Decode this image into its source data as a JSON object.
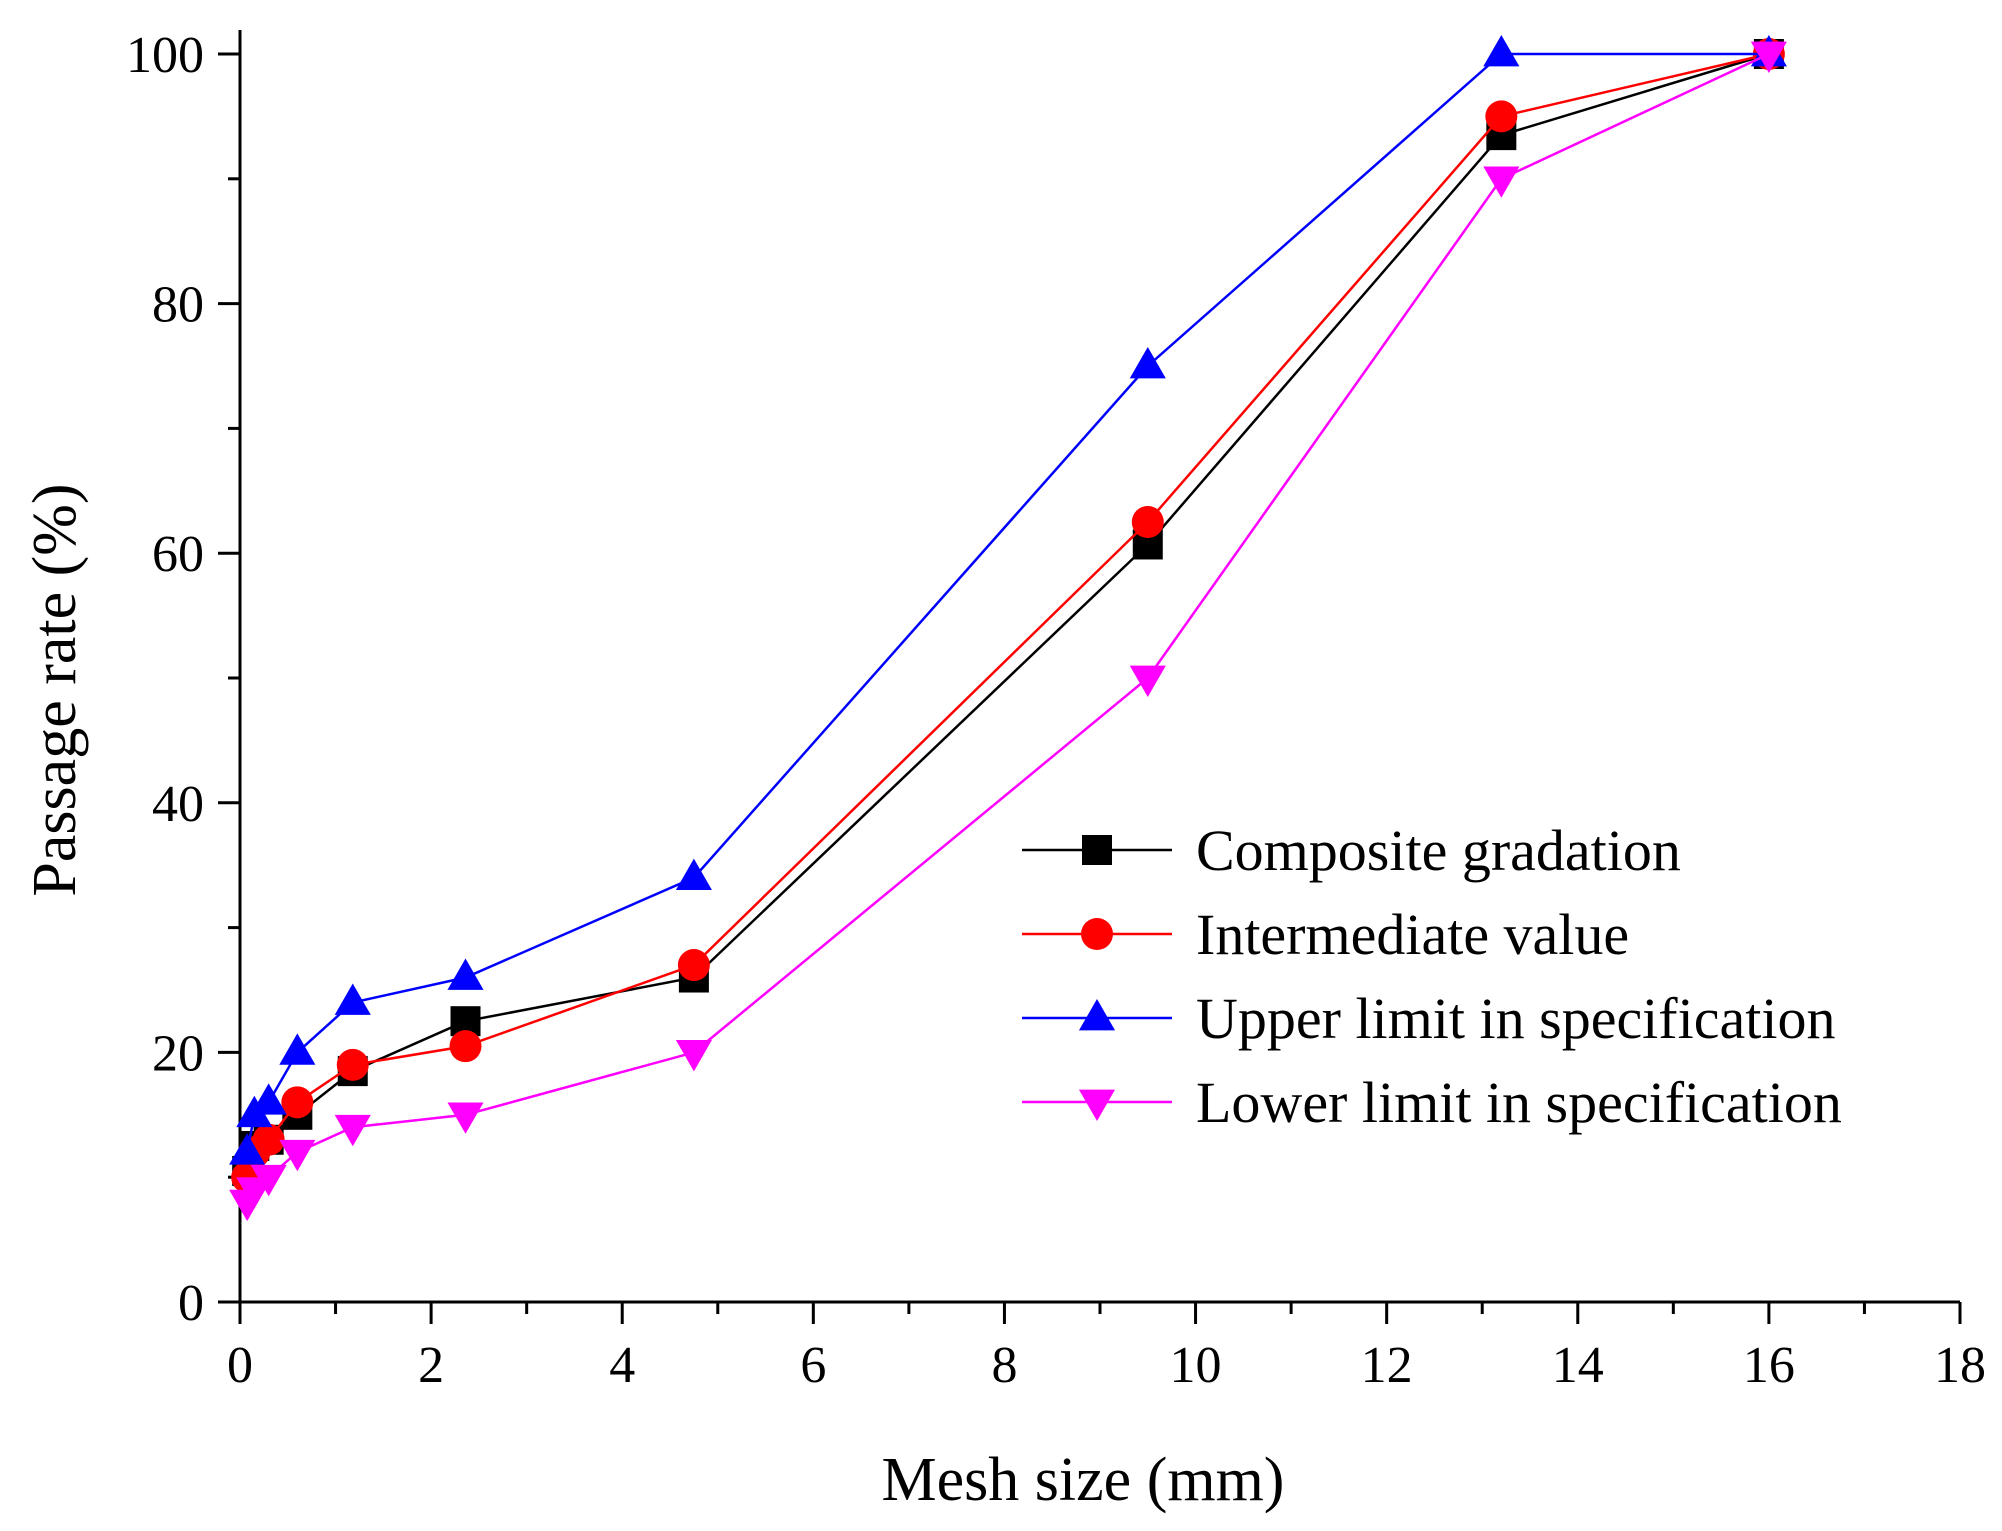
{
  "chart_data": {
    "type": "line",
    "title": "",
    "xlabel": "Mesh size (mm)",
    "ylabel": "Passage rate (%)",
    "xlim": [
      0,
      18
    ],
    "ylim": [
      0,
      100
    ],
    "xticks": [
      0,
      2,
      4,
      6,
      8,
      10,
      12,
      14,
      16,
      18
    ],
    "yticks": [
      0,
      20,
      40,
      60,
      80,
      100
    ],
    "x": [
      0.075,
      0.15,
      0.3,
      0.6,
      1.18,
      2.36,
      4.75,
      9.5,
      13.2,
      16
    ],
    "legend_position": "center-right",
    "grid": false,
    "series": [
      {
        "name": "Composite gradation",
        "color": "#000000",
        "marker": "square",
        "values": [
          10.5,
          12.5,
          13.0,
          15.0,
          18.5,
          22.5,
          26.0,
          60.7,
          93.5,
          100
        ]
      },
      {
        "name": "Intermediate value",
        "color": "#ff0000",
        "marker": "circle",
        "values": [
          10.0,
          12.0,
          13.0,
          16.0,
          19.0,
          20.5,
          27.0,
          62.5,
          95.0,
          100
        ]
      },
      {
        "name": "Upper limit in specification",
        "color": "#0000ff",
        "marker": "triangle-up",
        "values": [
          12.0,
          15.0,
          16.0,
          20.0,
          24.0,
          26.0,
          34.0,
          75.0,
          100,
          100
        ]
      },
      {
        "name": "Lower limit in specification",
        "color": "#ff00ff",
        "marker": "triangle-down",
        "values": [
          8.0,
          9.0,
          10.0,
          12.0,
          14.0,
          15.0,
          20.0,
          50.0,
          90.0,
          100
        ]
      }
    ]
  }
}
